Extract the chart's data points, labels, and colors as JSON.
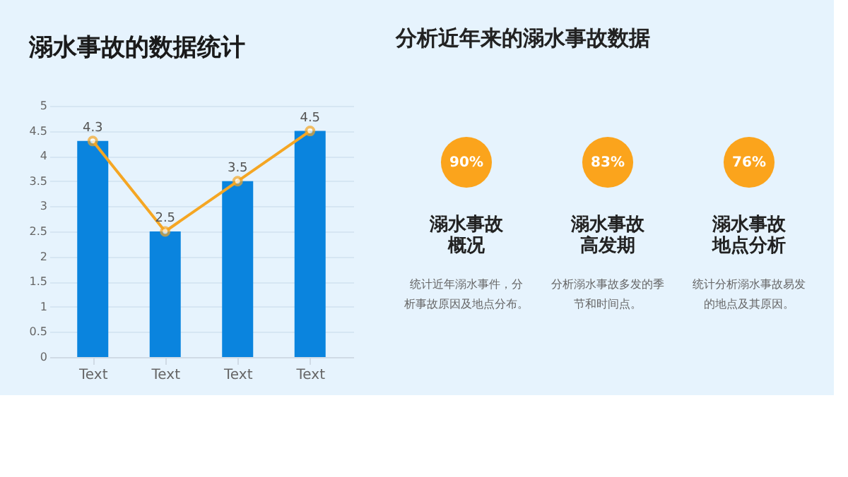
{
  "chart_data": [
    {
      "type": "bar",
      "title": "溺水事故的数据统计",
      "categories": [
        "Text",
        "Text",
        "Text",
        "Text"
      ],
      "series": [
        {
          "type": "bar",
          "color": "#0a84de",
          "values": [
            4.3,
            2.5,
            3.5,
            4.5
          ]
        },
        {
          "type": "line",
          "color": "#f5a623",
          "values": [
            4.3,
            2.5,
            3.5,
            4.5
          ],
          "marker": "circle",
          "data_labels": true
        }
      ],
      "ylim": [
        0,
        5
      ],
      "yticks": [
        0,
        0.5,
        1,
        1.5,
        2,
        2.5,
        3,
        3.5,
        4,
        4.5,
        5
      ],
      "grid": "y",
      "legend": false
    },
    {
      "type": "other",
      "title": "分析近年来的溺水事故数据",
      "categories": [
        "溺水事故概况",
        "溺水事故高发期",
        "溺水事故地点分析"
      ],
      "colors": [
        "#fba41c",
        "#fba41c",
        "#fba41c"
      ],
      "annotations": [
        "90%",
        "83%",
        "76%",
        "统计近年溺水事件，分析事故原因及地点分布。",
        "分析溺水事故多发的季节和时间点。",
        "统计分析溺水事故易发的地点及其原因。"
      ]
    }
  ]
}
